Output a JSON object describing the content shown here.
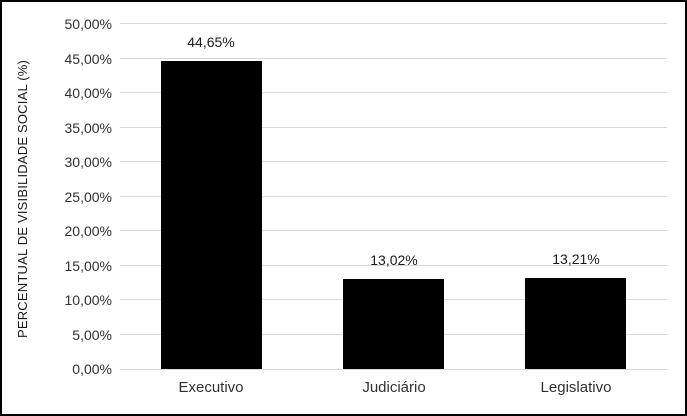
{
  "chart_data": {
    "type": "bar",
    "title": "",
    "categories": [
      "Executivo",
      "Judiciário",
      "Legislativo"
    ],
    "values": [
      44.65,
      13.02,
      13.21
    ],
    "value_labels": [
      "44,65%",
      "13,02%",
      "13,21%"
    ],
    "xlabel": "",
    "ylabel": "PERCENTUAL DE VISIBILIDADE SOCIAL (%)",
    "ylim": [
      0,
      50
    ],
    "ytick_step": 5,
    "ytick_labels": [
      "0,00%",
      "5,00%",
      "10,00%",
      "15,00%",
      "20,00%",
      "25,00%",
      "30,00%",
      "35,00%",
      "40,00%",
      "45,00%",
      "50,00%"
    ],
    "grid": true,
    "legend": false,
    "colors": {
      "bar": "#000000",
      "gridline": "#d9d9d9",
      "background": "#ffffff",
      "frame_border": "#000000",
      "axis_text": "#303030",
      "label_text": "#1a1a1a"
    }
  }
}
